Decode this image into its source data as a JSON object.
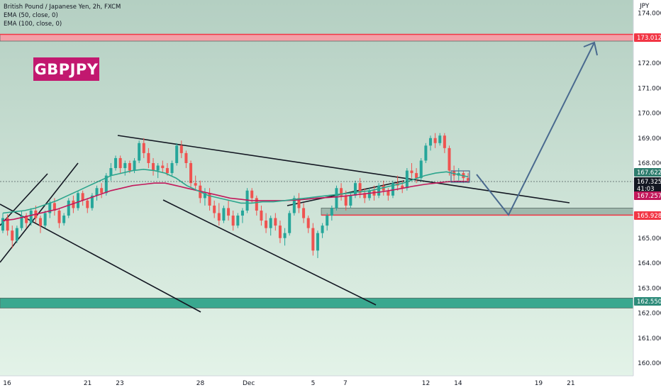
{
  "chart_data": {
    "type": "candlestick",
    "legend": {
      "symbol": "British Pound / Japanese Yen, 2h, FXCM",
      "ema50": "EMA (50, close, 0)",
      "ema100": "EMA (100, close, 0)"
    },
    "badge": "GBPJPY",
    "y_axis": {
      "unit": "JPY",
      "ticks": [
        {
          "label": "174.000",
          "value": 174.0
        },
        {
          "label": "172.000",
          "value": 172.0
        },
        {
          "label": "171.000",
          "value": 171.0
        },
        {
          "label": "170.000",
          "value": 170.0
        },
        {
          "label": "169.000",
          "value": 169.0
        },
        {
          "label": "168.000",
          "value": 168.0
        },
        {
          "label": "165.000",
          "value": 165.0
        },
        {
          "label": "164.000",
          "value": 164.0
        },
        {
          "label": "163.000",
          "value": 163.0
        },
        {
          "label": "162.000",
          "value": 162.0
        },
        {
          "label": "161.000",
          "value": 161.0
        },
        {
          "label": "160.000",
          "value": 160.0
        }
      ]
    },
    "x_axis": {
      "ticks": [
        {
          "label": "16",
          "day": 0
        },
        {
          "label": "21",
          "day": 5
        },
        {
          "label": "23",
          "day": 7
        },
        {
          "label": "28",
          "day": 12
        },
        {
          "label": "Dec",
          "day": 15
        },
        {
          "label": "5",
          "day": 19
        },
        {
          "label": "7",
          "day": 21
        },
        {
          "label": "12",
          "day": 26
        },
        {
          "label": "14",
          "day": 28
        },
        {
          "label": "19",
          "day": 33
        },
        {
          "label": "21",
          "day": 35
        }
      ]
    },
    "price_tags": [
      {
        "label": "173.012",
        "value": 173.012,
        "bg": "#f23645",
        "fg": "#ffffff"
      },
      {
        "label": "167.622",
        "value": 167.622,
        "bg": "#2e7d6e",
        "fg": "#ffffff"
      },
      {
        "label": "167.325",
        "value": 167.325,
        "bg": "#131722",
        "fg": "#ffffff"
      },
      {
        "label": "41:03",
        "value": null,
        "bg": "#131722",
        "fg": "#ffffff"
      },
      {
        "label": "167.257",
        "value": 167.257,
        "bg": "#c2185b",
        "fg": "#ffffff"
      },
      {
        "label": "165.928",
        "value": 165.928,
        "bg": "#f23645",
        "fg": "#ffffff"
      },
      {
        "label": "162.550",
        "value": 162.55,
        "bg": "#2e8b7a",
        "fg": "#ffffff"
      }
    ],
    "zones": [
      {
        "name": "resistance",
        "from": 172.88,
        "to": 173.15,
        "color": "#f4a0a8"
      },
      {
        "name": "support-small",
        "from": 165.92,
        "to": 166.2,
        "color": "#9fb8ad"
      },
      {
        "name": "support",
        "from": 162.2,
        "to": 162.6,
        "color": "#3aa88f"
      }
    ],
    "colors": {
      "up": "#26a69a",
      "down": "#ef5350",
      "ema50": "#2ca58d",
      "ema100": "#c2185b",
      "projection": "#4a6a8f",
      "bg_top": "#b4cfc2",
      "bg_bottom": "#e3f3e8"
    },
    "ohlc": [
      [
        165.3,
        166.0,
        165.2,
        165.8
      ],
      [
        165.8,
        165.95,
        165.1,
        165.3
      ],
      [
        165.3,
        165.5,
        164.6,
        164.9
      ],
      [
        164.9,
        165.5,
        164.8,
        165.4
      ],
      [
        165.4,
        166.1,
        165.3,
        165.9
      ],
      [
        165.9,
        166.0,
        165.4,
        165.6
      ],
      [
        165.6,
        166.2,
        165.5,
        166.1
      ],
      [
        166.1,
        166.3,
        165.6,
        165.8
      ],
      [
        165.8,
        165.9,
        165.2,
        165.5
      ],
      [
        165.5,
        166.1,
        165.4,
        166.0
      ],
      [
        166.0,
        166.5,
        165.8,
        166.4
      ],
      [
        166.4,
        166.6,
        165.9,
        166.1
      ],
      [
        166.1,
        166.2,
        165.4,
        165.6
      ],
      [
        165.6,
        166.0,
        165.5,
        165.9
      ],
      [
        165.9,
        166.6,
        165.8,
        166.5
      ],
      [
        166.5,
        166.7,
        166.0,
        166.2
      ],
      [
        166.2,
        166.9,
        166.1,
        166.8
      ],
      [
        166.8,
        166.9,
        166.3,
        166.5
      ],
      [
        166.5,
        166.6,
        166.0,
        166.2
      ],
      [
        166.2,
        166.8,
        166.1,
        166.7
      ],
      [
        166.7,
        167.1,
        166.5,
        167.0
      ],
      [
        167.0,
        167.2,
        166.6,
        166.8
      ],
      [
        166.8,
        167.6,
        166.7,
        167.5
      ],
      [
        167.5,
        168.0,
        167.3,
        167.8
      ],
      [
        167.8,
        168.3,
        167.7,
        168.2
      ],
      [
        168.2,
        168.3,
        167.6,
        167.8
      ],
      [
        167.8,
        168.1,
        167.5,
        168.0
      ],
      [
        168.0,
        168.1,
        167.6,
        167.7
      ],
      [
        167.7,
        168.2,
        167.6,
        168.1
      ],
      [
        168.1,
        168.9,
        168.0,
        168.8
      ],
      [
        168.8,
        169.0,
        168.2,
        168.4
      ],
      [
        168.4,
        168.6,
        167.8,
        168.0
      ],
      [
        168.0,
        168.2,
        167.5,
        167.7
      ],
      [
        167.7,
        168.0,
        167.4,
        167.9
      ],
      [
        167.9,
        168.1,
        167.6,
        167.8
      ],
      [
        167.8,
        168.0,
        167.5,
        167.6
      ],
      [
        167.6,
        168.1,
        167.5,
        168.0
      ],
      [
        168.0,
        168.8,
        167.9,
        168.7
      ],
      [
        168.7,
        168.9,
        168.2,
        168.4
      ],
      [
        168.4,
        168.5,
        167.8,
        168.0
      ],
      [
        168.0,
        168.1,
        167.0,
        167.2
      ],
      [
        167.2,
        167.5,
        166.9,
        167.1
      ],
      [
        167.1,
        167.3,
        166.4,
        166.6
      ],
      [
        166.6,
        167.0,
        166.3,
        166.8
      ],
      [
        166.8,
        167.0,
        166.1,
        166.3
      ],
      [
        166.3,
        166.5,
        165.8,
        166.0
      ],
      [
        166.0,
        166.4,
        165.5,
        165.7
      ],
      [
        165.7,
        166.3,
        165.6,
        166.2
      ],
      [
        166.2,
        166.5,
        165.7,
        165.9
      ],
      [
        165.9,
        166.1,
        165.3,
        165.5
      ],
      [
        165.5,
        166.0,
        165.4,
        165.9
      ],
      [
        165.9,
        166.2,
        165.6,
        166.1
      ],
      [
        166.1,
        167.0,
        166.0,
        166.9
      ],
      [
        166.9,
        167.0,
        166.4,
        166.6
      ],
      [
        166.6,
        166.7,
        165.9,
        166.1
      ],
      [
        166.1,
        166.3,
        165.5,
        165.7
      ],
      [
        165.7,
        166.0,
        165.2,
        165.4
      ],
      [
        165.4,
        165.9,
        165.1,
        165.8
      ],
      [
        165.8,
        166.0,
        165.3,
        165.5
      ],
      [
        165.5,
        165.7,
        164.8,
        165.0
      ],
      [
        165.0,
        165.4,
        164.7,
        165.2
      ],
      [
        165.2,
        166.1,
        165.1,
        166.0
      ],
      [
        166.0,
        166.7,
        165.9,
        166.6
      ],
      [
        166.6,
        166.8,
        166.0,
        166.2
      ],
      [
        166.2,
        166.4,
        165.6,
        165.8
      ],
      [
        165.8,
        165.9,
        165.2,
        165.4
      ],
      [
        165.4,
        165.6,
        164.3,
        164.5
      ],
      [
        164.5,
        165.3,
        164.2,
        165.2
      ],
      [
        165.2,
        165.6,
        165.0,
        165.5
      ],
      [
        165.5,
        166.0,
        165.3,
        165.9
      ],
      [
        165.9,
        166.3,
        165.7,
        166.2
      ],
      [
        166.2,
        167.1,
        166.1,
        167.0
      ],
      [
        167.0,
        167.2,
        166.5,
        166.7
      ],
      [
        166.7,
        166.9,
        166.1,
        166.3
      ],
      [
        166.3,
        166.8,
        166.2,
        166.7
      ],
      [
        166.7,
        167.3,
        166.6,
        167.2
      ],
      [
        167.2,
        167.4,
        166.6,
        166.8
      ],
      [
        166.8,
        167.0,
        166.4,
        166.6
      ],
      [
        166.6,
        167.0,
        166.5,
        166.9
      ],
      [
        166.9,
        167.1,
        166.5,
        166.7
      ],
      [
        166.7,
        167.2,
        166.6,
        167.1
      ],
      [
        167.1,
        167.3,
        166.7,
        166.9
      ],
      [
        166.9,
        167.0,
        166.5,
        166.7
      ],
      [
        166.7,
        167.3,
        166.6,
        167.2
      ],
      [
        167.2,
        167.5,
        166.9,
        167.1
      ],
      [
        167.1,
        167.3,
        166.8,
        167.0
      ],
      [
        167.0,
        167.8,
        166.9,
        167.7
      ],
      [
        167.7,
        168.0,
        167.4,
        167.6
      ],
      [
        167.6,
        167.8,
        167.2,
        167.4
      ],
      [
        167.4,
        168.2,
        167.3,
        168.1
      ],
      [
        168.1,
        168.8,
        168.0,
        168.7
      ],
      [
        168.7,
        169.1,
        168.5,
        169.0
      ],
      [
        169.0,
        169.2,
        168.6,
        168.8
      ],
      [
        168.8,
        169.2,
        168.7,
        169.1
      ],
      [
        169.1,
        169.2,
        168.4,
        168.6
      ],
      [
        168.6,
        168.7,
        167.5,
        167.7
      ],
      [
        167.7,
        167.9,
        167.3,
        167.5
      ],
      [
        167.5,
        167.8,
        167.3,
        167.6
      ],
      [
        167.6,
        167.7,
        167.2,
        167.4
      ],
      [
        167.4,
        167.6,
        167.2,
        167.3
      ]
    ],
    "ema50": [
      166.0,
      166.05,
      166.1,
      166.2,
      166.35,
      166.5,
      166.7,
      166.9,
      167.1,
      167.3,
      167.5,
      167.6,
      167.7,
      167.75,
      167.7,
      167.6,
      167.4,
      167.1,
      166.9,
      166.7,
      166.6,
      166.5,
      166.4,
      166.4,
      166.45,
      166.45,
      166.5,
      166.55,
      166.6,
      166.65,
      166.7,
      166.75,
      166.8,
      166.85,
      166.9,
      167.0,
      167.1,
      167.2,
      167.35,
      167.5,
      167.6,
      167.65,
      167.55,
      167.45
    ],
    "ema100": [
      165.7,
      165.75,
      165.85,
      165.95,
      166.05,
      166.15,
      166.3,
      166.45,
      166.6,
      166.75,
      166.9,
      167.0,
      167.1,
      167.15,
      167.2,
      167.2,
      167.1,
      167.0,
      166.9,
      166.8,
      166.7,
      166.6,
      166.55,
      166.5,
      166.5,
      166.5,
      166.5,
      166.52,
      166.55,
      166.6,
      166.62,
      166.65,
      166.7,
      166.75,
      166.8,
      166.85,
      166.92,
      167.0,
      167.08,
      167.15,
      167.2,
      167.25,
      167.27,
      167.26
    ]
  }
}
